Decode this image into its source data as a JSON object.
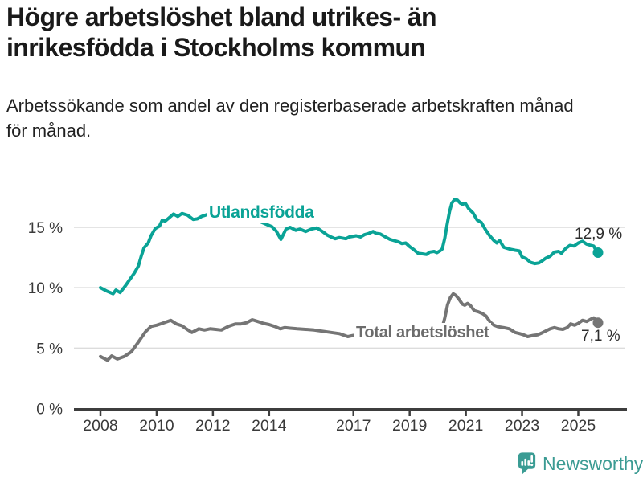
{
  "header": {
    "title": "Högre arbetslöshet bland utrikes- än\ninrikesfödda i Stockholms kommun",
    "subtitle": "Arbetssökande som andel av den registerbaserade arbetskraften månad\nför månad."
  },
  "chart_data": {
    "type": "line",
    "title": "Högre arbetslöshet bland utrikes- än inrikesfödda i Stockholms kommun",
    "subtitle": "Arbetssökande som andel av den registerbaserade arbetskraften månad för månad.",
    "unit": "%",
    "grid": "horizontal-only",
    "x_axis": {
      "ticks": [
        2008,
        2010,
        2012,
        2014,
        2017,
        2019,
        2021,
        2023,
        2025
      ],
      "range_years": [
        2007.0,
        2026.7
      ]
    },
    "y_axis": {
      "ticks": [
        0,
        5,
        10,
        15
      ],
      "tick_labels": [
        "0 %",
        "5 %",
        "10 %",
        "15 %"
      ],
      "range": [
        0,
        18.5
      ]
    },
    "style": {
      "grid_color": "#dcdcdc",
      "axis_color": "#3d3d3d",
      "tick_label_color": "#3a3a3a"
    },
    "series": [
      {
        "id": "utlandsfodda",
        "name": "Utlandsfödda",
        "color": "#0aa396",
        "end_label": "12,9 %",
        "last_value": 12.9,
        "points": [
          [
            2008.0,
            10.0
          ],
          [
            2008.2,
            9.75
          ],
          [
            2008.45,
            9.5
          ],
          [
            2008.55,
            9.8
          ],
          [
            2008.7,
            9.6
          ],
          [
            2008.9,
            10.2
          ],
          [
            2009.05,
            10.7
          ],
          [
            2009.2,
            11.2
          ],
          [
            2009.35,
            11.8
          ],
          [
            2009.45,
            12.6
          ],
          [
            2009.55,
            13.3
          ],
          [
            2009.7,
            13.7
          ],
          [
            2009.8,
            14.3
          ],
          [
            2009.95,
            14.9
          ],
          [
            2010.1,
            15.1
          ],
          [
            2010.2,
            15.6
          ],
          [
            2010.3,
            15.5
          ],
          [
            2010.45,
            15.8
          ],
          [
            2010.6,
            16.1
          ],
          [
            2010.75,
            15.9
          ],
          [
            2010.9,
            16.15
          ],
          [
            2011.1,
            16.0
          ],
          [
            2011.3,
            15.65
          ],
          [
            2011.45,
            15.7
          ],
          [
            2011.6,
            15.9
          ],
          [
            2011.85,
            16.1
          ],
          [
            2012.0,
            16.05
          ],
          [
            2012.2,
            16.0
          ],
          [
            2012.5,
            15.85
          ],
          [
            2012.8,
            15.75
          ],
          [
            2013.1,
            15.7
          ],
          [
            2013.4,
            15.6
          ],
          [
            2013.7,
            15.45
          ],
          [
            2013.95,
            15.2
          ],
          [
            2014.1,
            15.05
          ],
          [
            2014.25,
            14.7
          ],
          [
            2014.42,
            14.0
          ],
          [
            2014.6,
            14.85
          ],
          [
            2014.75,
            15.0
          ],
          [
            2014.95,
            14.75
          ],
          [
            2015.1,
            14.85
          ],
          [
            2015.3,
            14.65
          ],
          [
            2015.5,
            14.85
          ],
          [
            2015.7,
            14.95
          ],
          [
            2015.93,
            14.6
          ],
          [
            2016.07,
            14.35
          ],
          [
            2016.2,
            14.2
          ],
          [
            2016.35,
            14.05
          ],
          [
            2016.5,
            14.15
          ],
          [
            2016.73,
            14.05
          ],
          [
            2016.85,
            14.2
          ],
          [
            2017.1,
            14.3
          ],
          [
            2017.25,
            14.2
          ],
          [
            2017.4,
            14.4
          ],
          [
            2017.55,
            14.5
          ],
          [
            2017.7,
            14.65
          ],
          [
            2017.8,
            14.5
          ],
          [
            2017.95,
            14.45
          ],
          [
            2018.1,
            14.25
          ],
          [
            2018.3,
            14.0
          ],
          [
            2018.45,
            13.9
          ],
          [
            2018.6,
            13.8
          ],
          [
            2018.72,
            13.65
          ],
          [
            2018.86,
            13.7
          ],
          [
            2019.0,
            13.4
          ],
          [
            2019.15,
            13.15
          ],
          [
            2019.3,
            12.85
          ],
          [
            2019.45,
            12.8
          ],
          [
            2019.6,
            12.75
          ],
          [
            2019.72,
            12.95
          ],
          [
            2019.87,
            13.0
          ],
          [
            2019.97,
            12.9
          ],
          [
            2020.08,
            13.05
          ],
          [
            2020.16,
            13.2
          ],
          [
            2020.25,
            14.1
          ],
          [
            2020.33,
            15.2
          ],
          [
            2020.42,
            16.3
          ],
          [
            2020.5,
            17.0
          ],
          [
            2020.6,
            17.3
          ],
          [
            2020.7,
            17.25
          ],
          [
            2020.8,
            17.0
          ],
          [
            2020.88,
            16.9
          ],
          [
            2020.98,
            17.0
          ],
          [
            2021.1,
            16.55
          ],
          [
            2021.25,
            16.2
          ],
          [
            2021.4,
            15.6
          ],
          [
            2021.55,
            15.4
          ],
          [
            2021.7,
            14.8
          ],
          [
            2021.85,
            14.3
          ],
          [
            2022.0,
            13.9
          ],
          [
            2022.1,
            13.7
          ],
          [
            2022.2,
            13.9
          ],
          [
            2022.35,
            13.35
          ],
          [
            2022.55,
            13.2
          ],
          [
            2022.75,
            13.1
          ],
          [
            2022.9,
            13.05
          ],
          [
            2023.0,
            12.55
          ],
          [
            2023.15,
            12.4
          ],
          [
            2023.3,
            12.1
          ],
          [
            2023.45,
            12.0
          ],
          [
            2023.6,
            12.05
          ],
          [
            2023.7,
            12.2
          ],
          [
            2023.85,
            12.45
          ],
          [
            2024.0,
            12.6
          ],
          [
            2024.15,
            12.95
          ],
          [
            2024.3,
            13.0
          ],
          [
            2024.4,
            12.85
          ],
          [
            2024.55,
            13.25
          ],
          [
            2024.7,
            13.5
          ],
          [
            2024.85,
            13.45
          ],
          [
            2025.0,
            13.7
          ],
          [
            2025.15,
            13.85
          ],
          [
            2025.3,
            13.6
          ],
          [
            2025.45,
            13.5
          ],
          [
            2025.55,
            13.45
          ],
          [
            2025.63,
            13.1
          ],
          [
            2025.7,
            12.9
          ]
        ]
      },
      {
        "id": "total",
        "name": "Total arbetslöshet",
        "color": "#757575",
        "end_label": "7,1 %",
        "last_value": 7.1,
        "points": [
          [
            2008.0,
            4.3
          ],
          [
            2008.25,
            4.0
          ],
          [
            2008.4,
            4.35
          ],
          [
            2008.6,
            4.1
          ],
          [
            2008.85,
            4.3
          ],
          [
            2009.1,
            4.7
          ],
          [
            2009.35,
            5.5
          ],
          [
            2009.6,
            6.35
          ],
          [
            2009.8,
            6.8
          ],
          [
            2010.0,
            6.9
          ],
          [
            2010.2,
            7.05
          ],
          [
            2010.5,
            7.3
          ],
          [
            2010.7,
            7.0
          ],
          [
            2010.9,
            6.85
          ],
          [
            2011.05,
            6.6
          ],
          [
            2011.25,
            6.3
          ],
          [
            2011.5,
            6.6
          ],
          [
            2011.7,
            6.5
          ],
          [
            2011.9,
            6.6
          ],
          [
            2012.1,
            6.55
          ],
          [
            2012.3,
            6.5
          ],
          [
            2012.55,
            6.8
          ],
          [
            2012.8,
            7.0
          ],
          [
            2013.0,
            7.0
          ],
          [
            2013.2,
            7.1
          ],
          [
            2013.4,
            7.35
          ],
          [
            2013.6,
            7.2
          ],
          [
            2013.8,
            7.05
          ],
          [
            2014.0,
            6.95
          ],
          [
            2014.2,
            6.8
          ],
          [
            2014.4,
            6.6
          ],
          [
            2014.55,
            6.7
          ],
          [
            2014.75,
            6.65
          ],
          [
            2015.0,
            6.6
          ],
          [
            2015.3,
            6.55
          ],
          [
            2015.6,
            6.5
          ],
          [
            2015.9,
            6.4
          ],
          [
            2016.2,
            6.3
          ],
          [
            2016.5,
            6.2
          ],
          [
            2016.8,
            5.95
          ],
          [
            2017.0,
            6.05
          ],
          [
            2017.3,
            6.0
          ],
          [
            2017.6,
            6.05
          ],
          [
            2017.9,
            5.95
          ],
          [
            2018.2,
            6.0
          ],
          [
            2018.5,
            6.05
          ],
          [
            2018.8,
            6.0
          ],
          [
            2019.1,
            6.1
          ],
          [
            2019.4,
            6.15
          ],
          [
            2019.7,
            6.2
          ],
          [
            2019.95,
            6.3
          ],
          [
            2020.15,
            6.6
          ],
          [
            2020.25,
            7.5
          ],
          [
            2020.35,
            8.6
          ],
          [
            2020.45,
            9.2
          ],
          [
            2020.55,
            9.5
          ],
          [
            2020.65,
            9.35
          ],
          [
            2020.77,
            9.0
          ],
          [
            2020.87,
            8.65
          ],
          [
            2020.96,
            8.55
          ],
          [
            2021.06,
            8.7
          ],
          [
            2021.15,
            8.55
          ],
          [
            2021.3,
            8.1
          ],
          [
            2021.45,
            8.0
          ],
          [
            2021.6,
            7.85
          ],
          [
            2021.72,
            7.65
          ],
          [
            2021.87,
            7.15
          ],
          [
            2022.0,
            6.9
          ],
          [
            2022.15,
            6.77
          ],
          [
            2022.35,
            6.7
          ],
          [
            2022.55,
            6.6
          ],
          [
            2022.75,
            6.3
          ],
          [
            2022.92,
            6.2
          ],
          [
            2023.06,
            6.1
          ],
          [
            2023.2,
            5.95
          ],
          [
            2023.4,
            6.05
          ],
          [
            2023.55,
            6.1
          ],
          [
            2023.7,
            6.25
          ],
          [
            2023.87,
            6.45
          ],
          [
            2024.0,
            6.6
          ],
          [
            2024.15,
            6.7
          ],
          [
            2024.3,
            6.6
          ],
          [
            2024.45,
            6.55
          ],
          [
            2024.6,
            6.7
          ],
          [
            2024.73,
            7.0
          ],
          [
            2024.87,
            6.9
          ],
          [
            2025.0,
            7.05
          ],
          [
            2025.15,
            7.3
          ],
          [
            2025.3,
            7.2
          ],
          [
            2025.45,
            7.4
          ],
          [
            2025.55,
            7.5
          ],
          [
            2025.63,
            7.3
          ],
          [
            2025.7,
            7.1
          ]
        ]
      }
    ]
  },
  "footer": {
    "brand": "Newsworthy",
    "brand_color": "#3b9b93"
  }
}
